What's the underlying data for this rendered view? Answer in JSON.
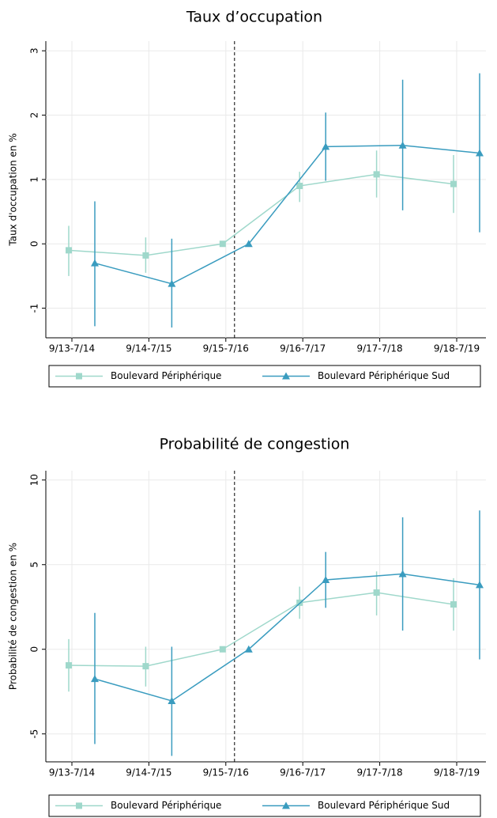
{
  "chart_data": [
    {
      "type": "line",
      "title": "Taux d’occupation",
      "y_label": "Taux d'occupation en %",
      "categories": [
        "9/13-7/14",
        "9/14-7/15",
        "9/15-7/16",
        "9/16-7/17",
        "9/17-7/18",
        "9/18-7/19"
      ],
      "vline": 2,
      "ylim": [
        -1.46,
        3.15
      ],
      "yticks": [
        -1,
        0,
        1,
        2,
        3
      ],
      "grid": true,
      "legend": "bottom",
      "series": [
        {
          "name": "Boulevard Périphérique",
          "color": "#9fd8cb",
          "marker": "square",
          "values": [
            -0.1,
            -0.18,
            0,
            0.9,
            1.08,
            0.93
          ],
          "lower": [
            -0.5,
            -0.45,
            null,
            0.65,
            0.72,
            0.48
          ],
          "upper": [
            0.28,
            0.1,
            null,
            1.12,
            1.45,
            1.38
          ]
        },
        {
          "name": "Boulevard Périphérique Sud",
          "color": "#3a9cbf",
          "marker": "triangle",
          "values": [
            -0.3,
            -0.62,
            0,
            1.51,
            1.53,
            1.41
          ],
          "lower": [
            -1.28,
            -1.3,
            null,
            0.98,
            0.52,
            0.18
          ],
          "upper": [
            0.66,
            0.08,
            null,
            2.04,
            2.55,
            2.65
          ]
        }
      ]
    },
    {
      "type": "line",
      "title": "Probabilité de congestion",
      "y_label": "Probabilité de congestion en %",
      "categories": [
        "9/13-7/14",
        "9/14-7/15",
        "9/15-7/16",
        "9/16-7/17",
        "9/17-7/18",
        "9/18-7/19"
      ],
      "vline": 2,
      "ylim": [
        -6.65,
        10.55
      ],
      "yticks": [
        -5,
        0,
        5,
        10
      ],
      "grid": true,
      "legend": "bottom",
      "series": [
        {
          "name": "Boulevard Périphérique",
          "color": "#9fd8cb",
          "marker": "square",
          "values": [
            -0.95,
            -1.0,
            0,
            2.75,
            3.35,
            2.65
          ],
          "lower": [
            -2.5,
            -2.2,
            null,
            1.8,
            2.0,
            1.1
          ],
          "upper": [
            0.6,
            0.15,
            null,
            3.7,
            4.6,
            4.2
          ]
        },
        {
          "name": "Boulevard Périphérique Sud",
          "color": "#3a9cbf",
          "marker": "triangle",
          "values": [
            -1.75,
            -3.05,
            0,
            4.1,
            4.45,
            3.8
          ],
          "lower": [
            -5.6,
            -6.3,
            null,
            2.45,
            1.1,
            -0.6
          ],
          "upper": [
            2.15,
            0.15,
            null,
            5.75,
            7.8,
            8.2
          ]
        }
      ]
    }
  ]
}
